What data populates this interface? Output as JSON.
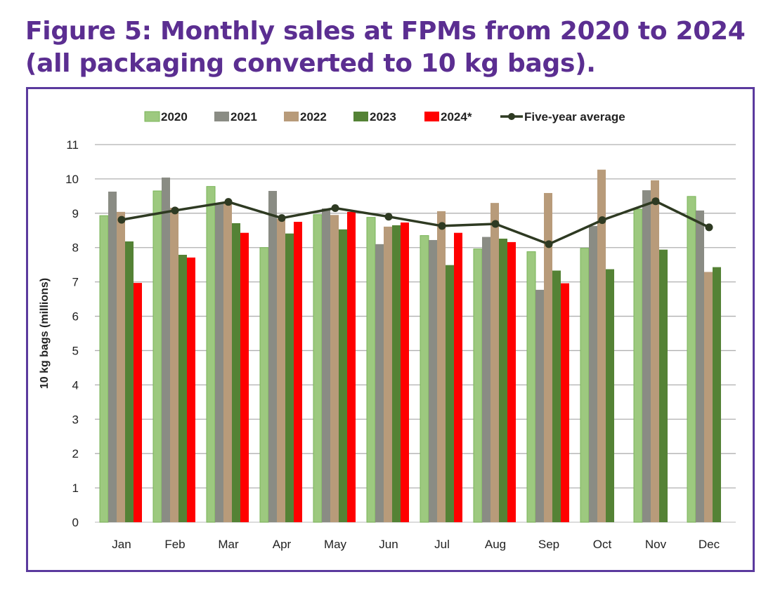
{
  "title": {
    "line1": "Figure 5: Monthly sales at FPMs from 2020 to 2024",
    "line2": "(all packaging converted to 10 kg bags)."
  },
  "colors": {
    "title": "#5b2e91",
    "frame": "#5b3a9e",
    "2020": "#9dc97f",
    "2020_border": "#79b457",
    "2021": "#8a8c84",
    "2022": "#b89b7a",
    "2023": "#548235",
    "2024": "#ff0000",
    "average": "#2e3a22",
    "grid": "#b0b0b0"
  },
  "chart_data": {
    "type": "bar",
    "title": "Figure 5: Monthly sales at FPMs from 2020 to 2024 (all packaging converted to 10 kg bags).",
    "xlabel": "",
    "ylabel": "10 kg bags (millions)",
    "ylim": [
      0,
      11
    ],
    "yticks": [
      0,
      1,
      2,
      3,
      4,
      5,
      6,
      7,
      8,
      9,
      10,
      11
    ],
    "grid": true,
    "legend_position": "top",
    "categories": [
      "Jan",
      "Feb",
      "Mar",
      "Apr",
      "May",
      "Jun",
      "Jul",
      "Aug",
      "Sep",
      "Oct",
      "Nov",
      "Dec"
    ],
    "series": [
      {
        "name": "2020",
        "type": "bar",
        "values": [
          8.93,
          9.65,
          9.78,
          8.0,
          8.96,
          8.88,
          8.35,
          7.96,
          7.88,
          7.98,
          9.12,
          9.49
        ]
      },
      {
        "name": "2021",
        "type": "bar",
        "values": [
          9.63,
          10.04,
          9.3,
          9.65,
          9.14,
          8.1,
          8.22,
          8.31,
          6.77,
          8.63,
          9.67,
          9.08
        ]
      },
      {
        "name": "2022",
        "type": "bar",
        "values": [
          9.04,
          9.16,
          9.33,
          8.84,
          8.95,
          8.61,
          9.06,
          9.3,
          9.59,
          10.27,
          9.96,
          7.29
        ]
      },
      {
        "name": "2023",
        "type": "bar",
        "values": [
          8.18,
          7.79,
          8.71,
          8.41,
          8.53,
          8.65,
          7.49,
          8.26,
          7.33,
          7.37,
          7.94,
          7.43
        ]
      },
      {
        "name": "2024*",
        "type": "bar",
        "values": [
          6.97,
          7.71,
          8.43,
          8.75,
          9.04,
          8.73,
          8.43,
          8.16,
          6.96,
          null,
          null,
          null
        ]
      },
      {
        "name": "Five-year average",
        "type": "line",
        "values": [
          8.81,
          9.08,
          9.33,
          8.86,
          9.15,
          8.9,
          8.63,
          8.69,
          8.1,
          8.8,
          9.35,
          8.59
        ]
      }
    ]
  }
}
